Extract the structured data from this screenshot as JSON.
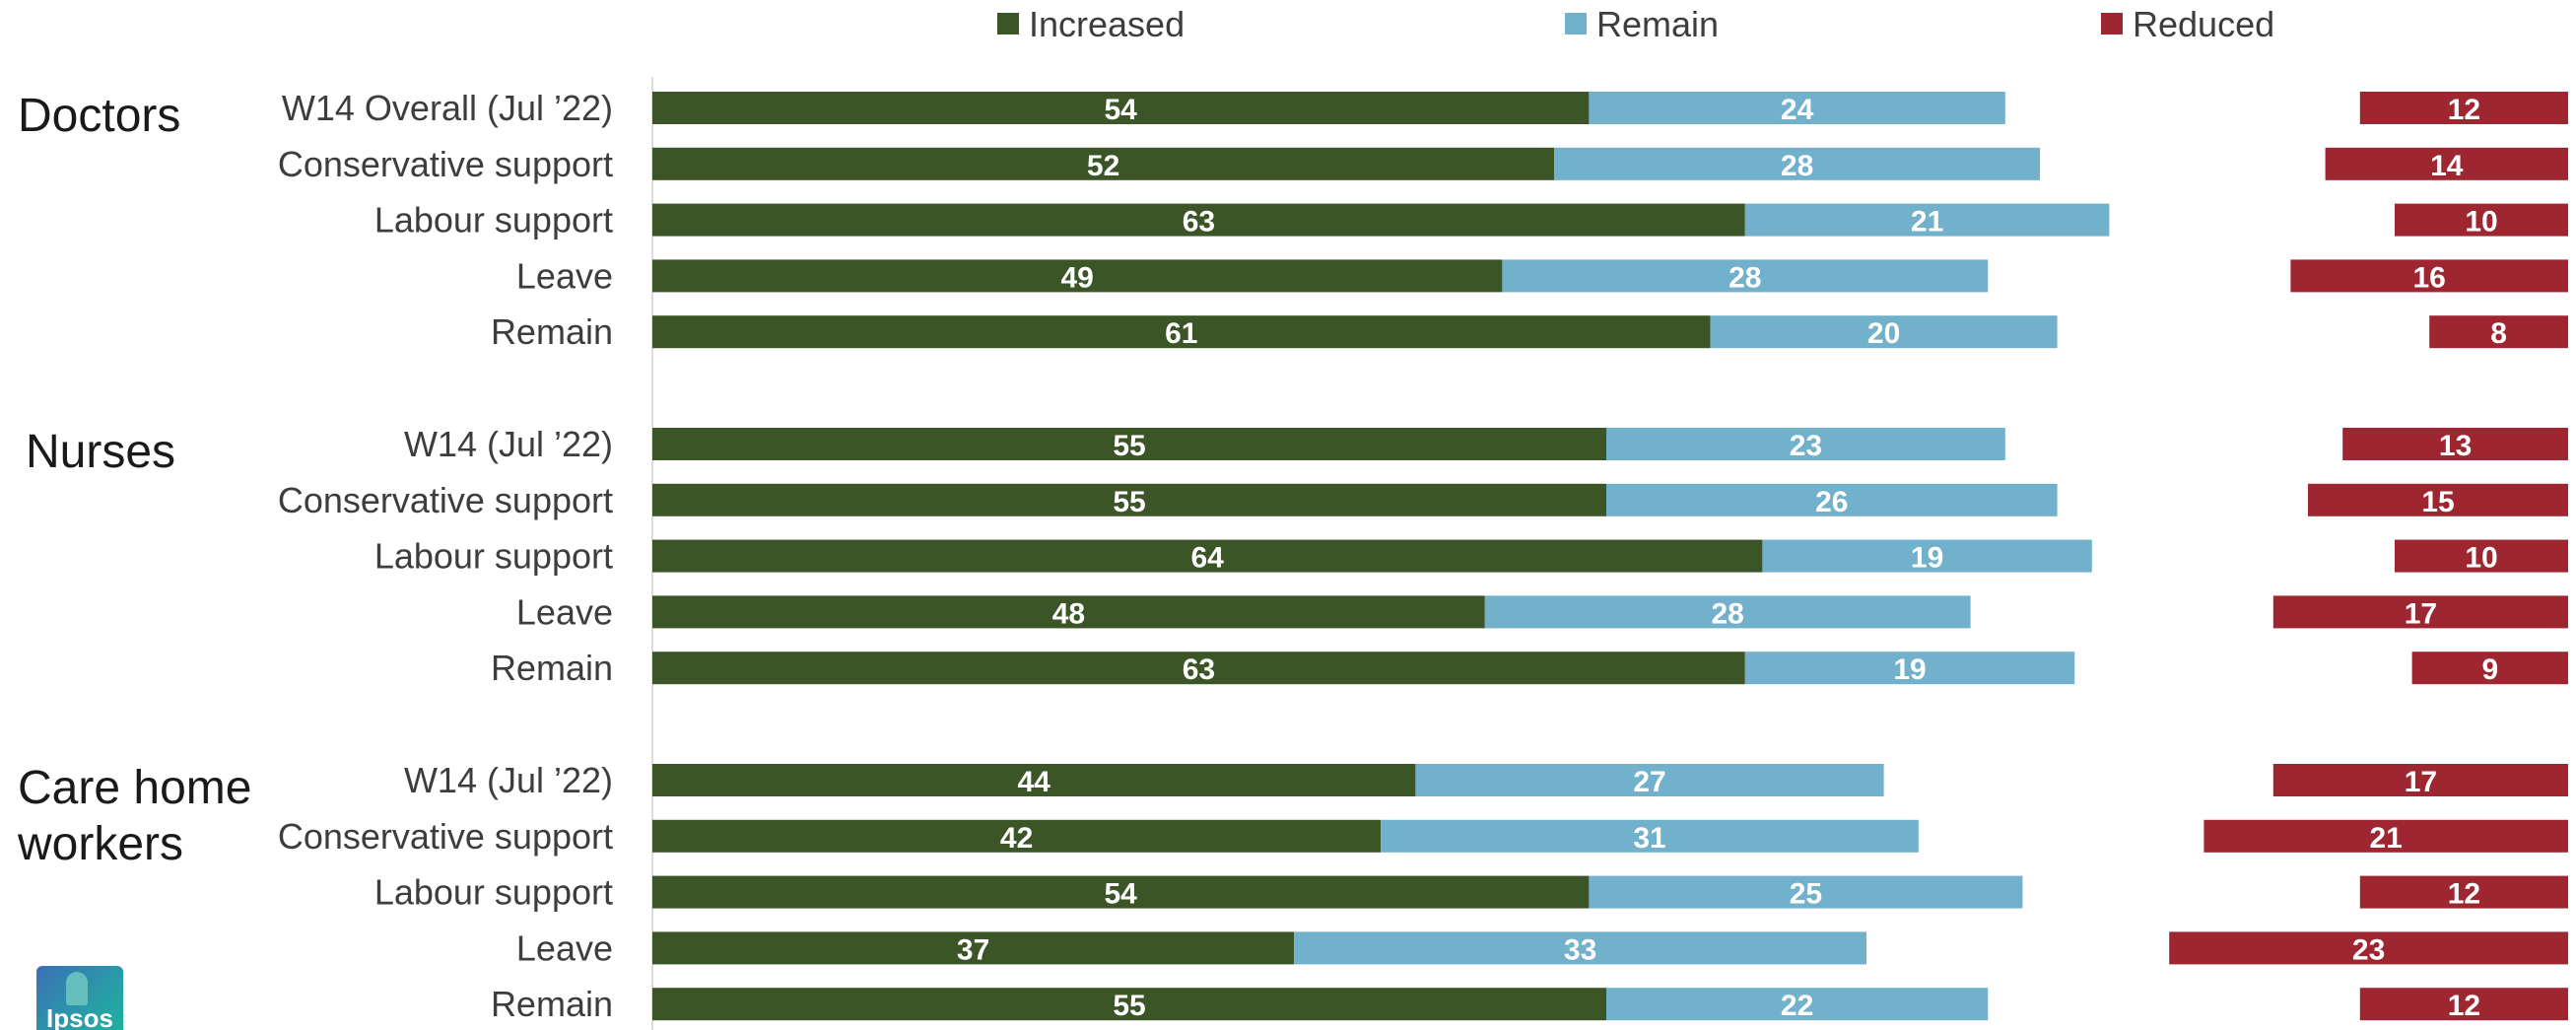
{
  "colors": {
    "increased": "#3c5527",
    "remain": "#72b1cb",
    "reduced": "#9d2631",
    "axis": "#dcdcdc",
    "text": "#3d3d3d"
  },
  "logo": {
    "text": "Ipsos"
  },
  "chart_data": {
    "type": "bar",
    "orientation": "horizontal",
    "legend_position": "top",
    "legend": [
      {
        "key": "increased",
        "label": "Increased"
      },
      {
        "key": "remain",
        "label": "Remain"
      },
      {
        "key": "reduced",
        "label": "Reduced"
      }
    ],
    "groups": [
      {
        "label_lines": [
          "Doctors"
        ],
        "rows": [
          {
            "label": "W14 Overall (Jul ’22)",
            "increased": 54,
            "remain": 24,
            "reduced": 12
          },
          {
            "label": "Conservative support",
            "increased": 52,
            "remain": 28,
            "reduced": 14
          },
          {
            "label": "Labour support",
            "increased": 63,
            "remain": 21,
            "reduced": 10
          },
          {
            "label": "Leave",
            "increased": 49,
            "remain": 28,
            "reduced": 16
          },
          {
            "label": "Remain",
            "increased": 61,
            "remain": 20,
            "reduced": 8
          }
        ]
      },
      {
        "label_lines": [
          "Nurses"
        ],
        "rows": [
          {
            "label": "W14 (Jul ’22)",
            "increased": 55,
            "remain": 23,
            "reduced": 13
          },
          {
            "label": "Conservative support",
            "increased": 55,
            "remain": 26,
            "reduced": 15
          },
          {
            "label": "Labour support",
            "increased": 64,
            "remain": 19,
            "reduced": 10
          },
          {
            "label": "Leave",
            "increased": 48,
            "remain": 28,
            "reduced": 17
          },
          {
            "label": "Remain",
            "increased": 63,
            "remain": 19,
            "reduced": 9
          }
        ]
      },
      {
        "label_lines": [
          "Care home",
          "workers"
        ],
        "rows": [
          {
            "label": "W14 (Jul ’22)",
            "increased": 44,
            "remain": 27,
            "reduced": 17
          },
          {
            "label": "Conservative support",
            "increased": 42,
            "remain": 31,
            "reduced": 21
          },
          {
            "label": "Labour support",
            "increased": 54,
            "remain": 25,
            "reduced": 12
          },
          {
            "label": "Leave",
            "increased": 37,
            "remain": 33,
            "reduced": 23
          },
          {
            "label": "Remain",
            "increased": 55,
            "remain": 22,
            "reduced": 12
          }
        ]
      }
    ]
  }
}
